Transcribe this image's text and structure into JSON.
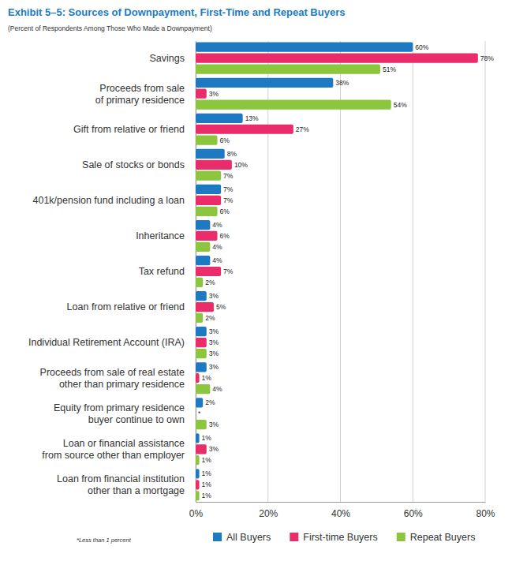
{
  "chart_data": {
    "type": "bar",
    "orientation": "horizontal",
    "title": "Exhibit 5–5:  Sources of Downpayment, First-Time and Repeat Buyers",
    "subtitle": "(Percent of Respondents Among Those Who Made a Downpayment)",
    "annotations": [
      "*Less than 1 percent"
    ],
    "categories": [
      "Savings",
      "Proceeds from sale\nof primary residence",
      "Gift from relative or friend",
      "Sale of stocks or bonds",
      "401k/pension fund including a loan",
      "Inheritance",
      "Tax refund",
      "Loan from relative or friend",
      "Individual Retirement Account (IRA)",
      "Proceeds from sale of real estate\nother than primary residence",
      "Equity from primary residence\nbuyer continue to own",
      "Loan or financial assistance\nfrom source other than employer",
      "Loan from financial institution\nother than a mortgage"
    ],
    "series": [
      {
        "name": "All Buyers",
        "color": "#1d7ac2",
        "values": [
          60,
          38,
          13,
          8,
          7,
          4,
          4,
          3,
          3,
          3,
          2,
          1,
          1
        ],
        "value_labels": [
          "60%",
          "38%",
          "13%",
          "8%",
          "7%",
          "4%",
          "4%",
          "3%",
          "3%",
          "3%",
          "2%",
          "1%",
          "1%"
        ]
      },
      {
        "name": "First-time Buyers",
        "color": "#ea2d6a",
        "values": [
          78,
          3,
          27,
          10,
          7,
          6,
          7,
          5,
          3,
          1,
          0,
          3,
          1
        ],
        "value_labels": [
          "78%",
          "3%",
          "27%",
          "10%",
          "7%",
          "6%",
          "7%",
          "5%",
          "3%",
          "1%",
          "*",
          "3%",
          "1%"
        ]
      },
      {
        "name": "Repeat Buyers",
        "color": "#8cc63f",
        "values": [
          51,
          54,
          6,
          7,
          6,
          4,
          2,
          2,
          3,
          4,
          3,
          1,
          1
        ],
        "value_labels": [
          "51%",
          "54%",
          "6%",
          "7%",
          "6%",
          "4%",
          "2%",
          "2%",
          "3%",
          "4%",
          "3%",
          "1%",
          "1%"
        ]
      }
    ],
    "xlim": [
      0,
      80
    ],
    "xticks": [
      {
        "value": 0,
        "label": "0%"
      },
      {
        "value": 20,
        "label": "20%"
      },
      {
        "value": 40,
        "label": "40%"
      },
      {
        "value": 60,
        "label": "60%"
      },
      {
        "value": 80,
        "label": "80%"
      }
    ],
    "grid": true,
    "data_labels": true,
    "legend": "bottom"
  }
}
